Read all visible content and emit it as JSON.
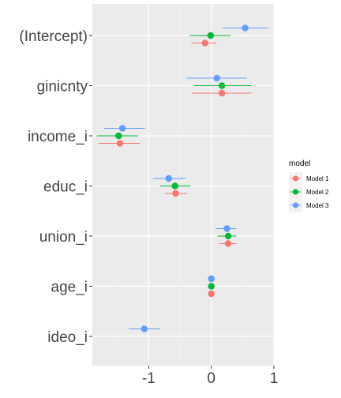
{
  "chart_data": {
    "type": "scatter",
    "subtype": "coefficient plot with horizontal error bars",
    "title": "",
    "xlabel": "",
    "ylabel": "",
    "xlim": [
      -1.9,
      1.0
    ],
    "x_ticks": [
      -1,
      0,
      1
    ],
    "x_tick_labels": [
      "-1",
      "0",
      "1"
    ],
    "categories": [
      "(Intercept)",
      "ginicnty",
      "income_i",
      "educ_i",
      "union_i",
      "age_i",
      "ideo_i"
    ],
    "grid": true,
    "legend": {
      "title": "model",
      "position": "right"
    },
    "series": [
      {
        "name": "Model 1",
        "color": "#F8766D",
        "points": [
          {
            "term": "(Intercept)",
            "estimate": -0.1,
            "low": -0.32,
            "high": 0.08
          },
          {
            "term": "ginicnty",
            "estimate": 0.17,
            "low": -0.31,
            "high": 0.64
          },
          {
            "term": "income_i",
            "estimate": -1.46,
            "low": -1.8,
            "high": -1.14
          },
          {
            "term": "educ_i",
            "estimate": -0.57,
            "low": -0.74,
            "high": -0.39
          },
          {
            "term": "union_i",
            "estimate": 0.27,
            "low": 0.13,
            "high": 0.4
          },
          {
            "term": "age_i",
            "estimate": 0.0,
            "low": -0.02,
            "high": 0.02
          }
        ]
      },
      {
        "name": "Model 2",
        "color": "#00BA38",
        "points": [
          {
            "term": "(Intercept)",
            "estimate": -0.01,
            "low": -0.34,
            "high": 0.31
          },
          {
            "term": "ginicnty",
            "estimate": 0.17,
            "low": -0.28,
            "high": 0.64
          },
          {
            "term": "income_i",
            "estimate": -1.48,
            "low": -1.83,
            "high": -1.17
          },
          {
            "term": "educ_i",
            "estimate": -0.58,
            "low": -0.82,
            "high": -0.33
          },
          {
            "term": "union_i",
            "estimate": 0.27,
            "low": 0.1,
            "high": 0.4
          },
          {
            "term": "age_i",
            "estimate": 0.0,
            "low": -0.02,
            "high": 0.02
          }
        ]
      },
      {
        "name": "Model 3",
        "color": "#619CFF",
        "points": [
          {
            "term": "(Intercept)",
            "estimate": 0.54,
            "low": 0.18,
            "high": 0.9
          },
          {
            "term": "ginicnty",
            "estimate": 0.09,
            "low": -0.4,
            "high": 0.56
          },
          {
            "term": "income_i",
            "estimate": -1.42,
            "low": -1.71,
            "high": -1.06
          },
          {
            "term": "educ_i",
            "estimate": -0.68,
            "low": -0.93,
            "high": -0.41
          },
          {
            "term": "union_i",
            "estimate": 0.25,
            "low": 0.07,
            "high": 0.4
          },
          {
            "term": "age_i",
            "estimate": 0.0,
            "low": -0.02,
            "high": 0.02
          },
          {
            "term": "ideo_i",
            "estimate": -1.07,
            "low": -1.32,
            "high": -0.82
          }
        ]
      }
    ]
  }
}
